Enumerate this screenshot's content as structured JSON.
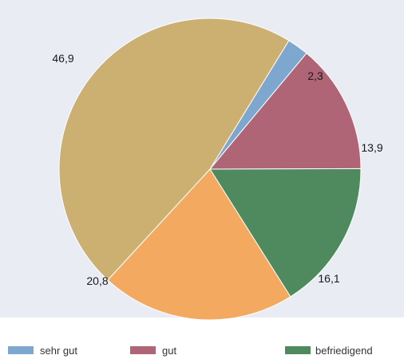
{
  "chart_data": {
    "type": "pie",
    "slices": [
      {
        "label": "sehr gut",
        "value": 2.3,
        "value_label": "2,3",
        "color": "#7ea7cf"
      },
      {
        "label": "gut",
        "value": 13.9,
        "value_label": "13,9",
        "color": "#b06577"
      },
      {
        "label": "befriedigend",
        "value": 16.1,
        "value_label": "16,1",
        "color": "#4f8a5e"
      },
      {
        "label": "",
        "value": 20.8,
        "value_label": "20,8",
        "color": "#f4a960"
      },
      {
        "label": "",
        "value": 46.9,
        "value_label": "46,9",
        "color": "#ccb072"
      }
    ],
    "legend": [
      "sehr gut",
      "gut",
      "befriedigend"
    ],
    "legend_position": "bottom",
    "start_direction": "upper-right, clockwise",
    "background_color": "#eaecf4"
  }
}
